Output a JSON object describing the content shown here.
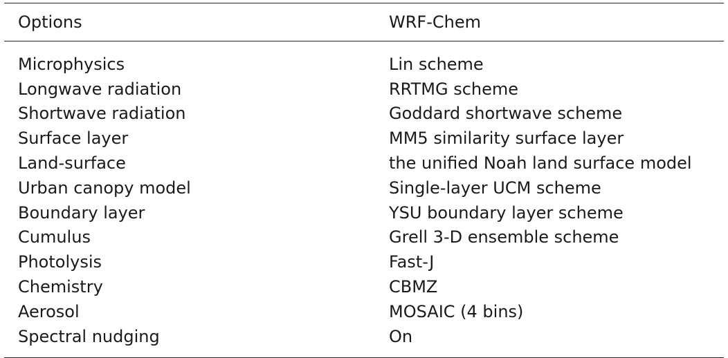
{
  "table": {
    "headers": {
      "options": "Options",
      "model": "WRF-Chem"
    },
    "rows": [
      {
        "option": "Microphysics",
        "value": "Lin scheme"
      },
      {
        "option": "Longwave radiation",
        "value": "RRTMG scheme"
      },
      {
        "option": "Shortwave radiation",
        "value": "Goddard shortwave scheme"
      },
      {
        "option": "Surface layer",
        "value": "MM5 similarity surface layer"
      },
      {
        "option": "Land-surface",
        "value": "the unified Noah land surface model"
      },
      {
        "option": "Urban canopy model",
        "value": "Single-layer UCM scheme"
      },
      {
        "option": "Boundary layer",
        "value": "YSU boundary layer scheme"
      },
      {
        "option": "Cumulus",
        "value": "Grell 3-D ensemble scheme"
      },
      {
        "option": "Photolysis",
        "value": "Fast-J"
      },
      {
        "option": "Chemistry",
        "value": "CBMZ"
      },
      {
        "option": "Aerosol",
        "value": "MOSAIC (4 bins)"
      },
      {
        "option": "Spectral nudging",
        "value": "On"
      }
    ]
  }
}
